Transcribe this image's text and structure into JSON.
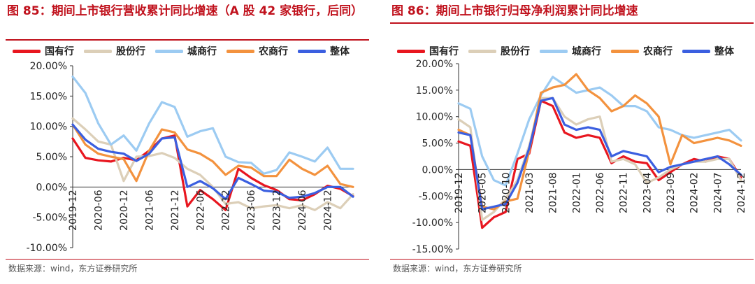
{
  "source_text": "数据来源：wind，东方证券研究所",
  "legend": [
    "国有行",
    "股份行",
    "城商行",
    "农商行",
    "整体"
  ],
  "colors": {
    "国有行": "#e8161f",
    "股份行": "#dccfb8",
    "城商行": "#9ccbf2",
    "农商行": "#f3923e",
    "整体": "#3b5fe0"
  },
  "chart_data": [
    {
      "type": "line",
      "title": "图 85：期间上市银行营收累计同比增速（A 股 42 家银行，后同）",
      "xlabel": "",
      "ylabel": "",
      "ylim": [
        -10,
        20
      ],
      "yticks": [
        "20.00%",
        "15.00%",
        "10.00%",
        "5.00%",
        "0.00%",
        "-5.00%",
        "-10.00%"
      ],
      "ytick_values": [
        20,
        15,
        10,
        5,
        0,
        -5,
        -10
      ],
      "xticks": [
        "2019-12",
        "2020-06",
        "2020-12",
        "2021-06",
        "2021-12",
        "2022-06",
        "2022-12",
        "2023-06",
        "2023-12",
        "2024-06",
        "2024-12"
      ],
      "x_count": 23,
      "xtick_index": [
        0,
        2,
        4,
        6,
        8,
        10,
        12,
        14,
        16,
        18,
        20
      ],
      "series": [
        {
          "name": "国有行",
          "values": [
            8.0,
            4.8,
            4.4,
            4.2,
            4.8,
            4.4,
            6.0,
            8.0,
            8.5,
            -3.2,
            -0.5,
            -2.0,
            -3.8,
            3.0,
            1.5,
            0.3,
            -0.5,
            -2.0,
            -2.2,
            -1.2,
            0.2,
            -0.3,
            -1.5
          ]
        },
        {
          "name": "股份行",
          "values": [
            11.3,
            9.5,
            7.5,
            7.0,
            1.0,
            5.0,
            5.1,
            5.6,
            4.8,
            3.0,
            2.0,
            0.0,
            -2.8,
            -2.5,
            -3.5,
            -3.2,
            -3.0,
            -3.5,
            -3.0,
            -3.8,
            -2.5,
            -3.5,
            -1.2
          ]
        },
        {
          "name": "城商行",
          "values": [
            18.2,
            15.5,
            10.5,
            7.0,
            8.5,
            6.0,
            10.5,
            14.0,
            13.2,
            8.3,
            9.2,
            9.7,
            5.0,
            4.1,
            4.0,
            2.2,
            2.8,
            5.7,
            5.0,
            4.2,
            6.5,
            3.0,
            3.0
          ]
        },
        {
          "name": "农商行",
          "values": [
            10.3,
            7.0,
            5.5,
            5.0,
            4.6,
            1.0,
            6.0,
            9.5,
            9.0,
            6.2,
            5.5,
            4.2,
            2.0,
            3.5,
            3.2,
            1.8,
            1.8,
            4.5,
            3.0,
            2.0,
            3.5,
            0.5,
            0.0
          ]
        },
        {
          "name": "整体",
          "values": [
            10.3,
            7.8,
            6.3,
            5.8,
            5.5,
            4.3,
            5.5,
            8.0,
            8.2,
            0.0,
            1.0,
            -0.2,
            -2.0,
            1.5,
            0.5,
            -0.6,
            -0.8,
            -1.8,
            -1.6,
            -1.0,
            0.0,
            0.0,
            -1.6
          ]
        }
      ]
    },
    {
      "type": "line",
      "title": "图 86：期间上市银行归母净利润累计同比增速",
      "xlabel": "",
      "ylabel": "",
      "ylim": [
        -15,
        20
      ],
      "yticks": [
        "20.00%",
        "15.00%",
        "10.00%",
        "5.00%",
        "0.00%",
        "-5.00%",
        "-10.00%",
        "-15.00%"
      ],
      "ytick_values": [
        20,
        15,
        10,
        5,
        0,
        -5,
        -10,
        -15
      ],
      "xticks": [
        "2019-12",
        "2020-05",
        "2020-10",
        "2021-03",
        "2021-08",
        "2022-01",
        "2022-06",
        "2022-11",
        "2023-04",
        "2023-09",
        "2024-02",
        "2024-07",
        "2024-12"
      ],
      "x_count": 25,
      "xtick_index": [
        0,
        2,
        4,
        6,
        8,
        10,
        12,
        14,
        16,
        18,
        20,
        22,
        24
      ],
      "series": [
        {
          "name": "国有行",
          "values": [
            5.3,
            4.5,
            -11.0,
            -9.0,
            -8.0,
            2.0,
            3.0,
            13.0,
            12.0,
            7.0,
            6.0,
            6.5,
            6.0,
            1.2,
            2.5,
            1.5,
            1.2,
            -2.0,
            -0.5,
            1.0,
            2.0,
            1.5,
            2.5,
            2.0,
            -1.5
          ]
        },
        {
          "name": "股份行",
          "values": [
            9.5,
            8.0,
            -9.5,
            -8.0,
            -5.5,
            -2.0,
            4.5,
            13.5,
            13.5,
            10.0,
            8.5,
            9.5,
            10.0,
            1.5,
            2.0,
            1.0,
            -2.5,
            -1.5,
            0.0,
            1.0,
            1.5,
            1.5,
            2.0,
            2.0,
            -2.0
          ]
        },
        {
          "name": "城商行",
          "values": [
            12.5,
            11.5,
            2.5,
            -2.0,
            -3.0,
            3.0,
            9.5,
            14.0,
            17.5,
            16.0,
            14.5,
            15.0,
            15.5,
            14.0,
            12.0,
            12.0,
            11.0,
            8.0,
            7.5,
            6.5,
            6.0,
            6.5,
            7.0,
            7.5,
            5.5
          ]
        },
        {
          "name": "农商行",
          "values": [
            7.5,
            6.5,
            -7.0,
            -7.5,
            -6.0,
            -5.5,
            3.5,
            14.5,
            15.5,
            16.0,
            18.0,
            15.0,
            13.5,
            11.0,
            12.0,
            14.0,
            12.5,
            10.0,
            1.0,
            6.5,
            5.0,
            5.5,
            6.0,
            5.5,
            4.5
          ]
        },
        {
          "name": "整体",
          "values": [
            7.0,
            6.5,
            -7.5,
            -7.0,
            -6.5,
            -2.5,
            4.0,
            13.0,
            13.5,
            8.5,
            7.5,
            8.0,
            7.5,
            2.5,
            3.5,
            3.0,
            2.5,
            -0.5,
            0.5,
            1.0,
            1.5,
            2.0,
            2.5,
            1.0,
            -1.0
          ]
        }
      ]
    }
  ]
}
